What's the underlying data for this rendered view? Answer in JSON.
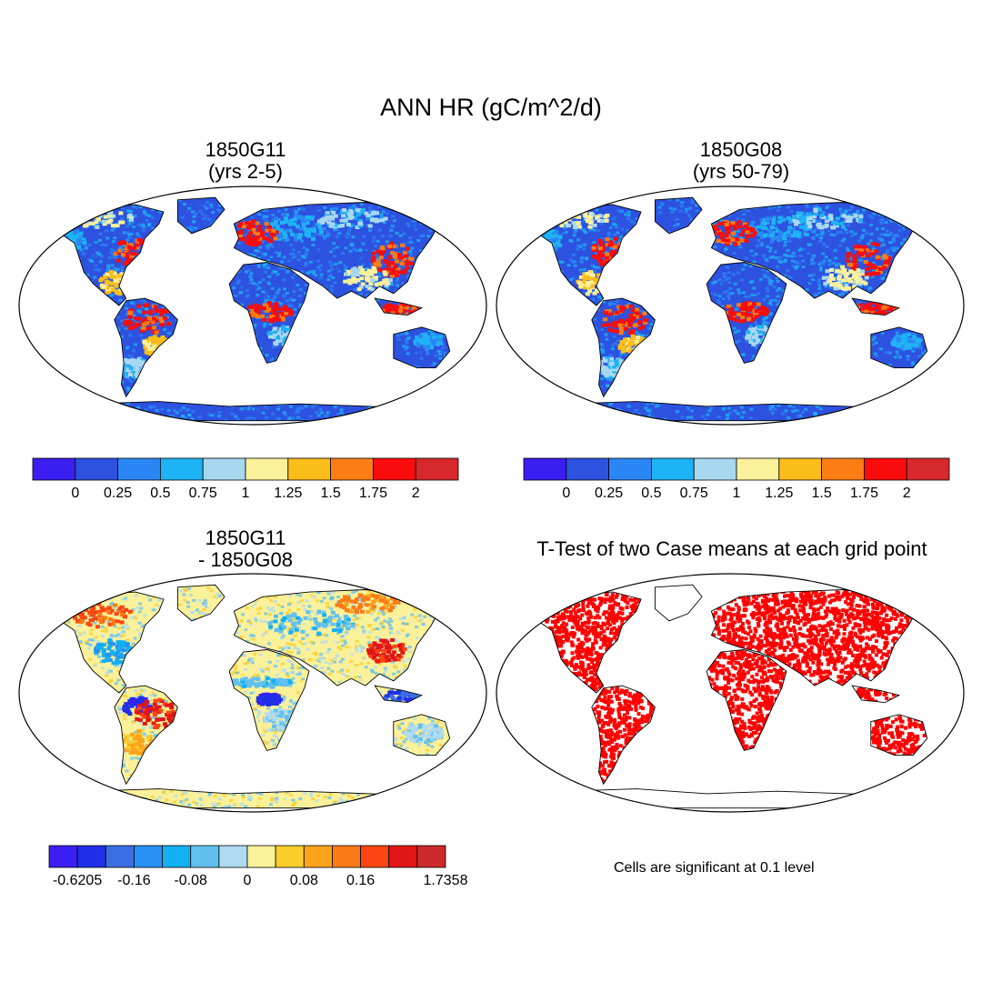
{
  "figure": {
    "title": "ANN HR (gC/m^2/d)",
    "note": "Cells are significant at 0.1 level"
  },
  "panels": {
    "p1": {
      "title1": "1850G11",
      "title2": "(yrs 2-5)"
    },
    "p2": {
      "title1": "1850G08",
      "title2": "(yrs 50-79)"
    },
    "p3": {
      "title1": "1850G11",
      "title2": "- 1850G08"
    },
    "p4": {
      "title1": "T-Test of two Case means at each grid point",
      "title2": ""
    }
  },
  "colorbars": {
    "abs": {
      "colors": [
        "#3b1ff2",
        "#2d52e0",
        "#2b86f5",
        "#1eb3f5",
        "#a8d8f0",
        "#fbf19a",
        "#fbbd1a",
        "#fb7d14",
        "#fb0c0c",
        "#d7282b"
      ],
      "labels": [
        "0",
        "0.25",
        "0.5",
        "0.75",
        "1",
        "1.25",
        "1.5",
        "1.75",
        "2"
      ]
    },
    "diff": {
      "colors": [
        "#3b1ff2",
        "#2030e8",
        "#3a6fe3",
        "#2890f5",
        "#13b0f2",
        "#62c0ee",
        "#aedaf2",
        "#fbf19a",
        "#fbcd2a",
        "#fba31a",
        "#fb7a18",
        "#fb4512",
        "#e21616",
        "#cc2a2a"
      ],
      "labels": [
        "-0.6205",
        "-0.16",
        "-0.08",
        "0",
        "0.08",
        "0.16",
        "1.7358"
      ],
      "label_after_box": [
        1,
        3,
        5,
        7,
        9,
        11,
        14
      ]
    }
  },
  "map_colors": {
    "ocean": "#ffffff",
    "land_abs": "#2d52e0",
    "land_diff": "#fbf19a",
    "ttest_sig": "#ff0000",
    "outline": "#000000"
  }
}
